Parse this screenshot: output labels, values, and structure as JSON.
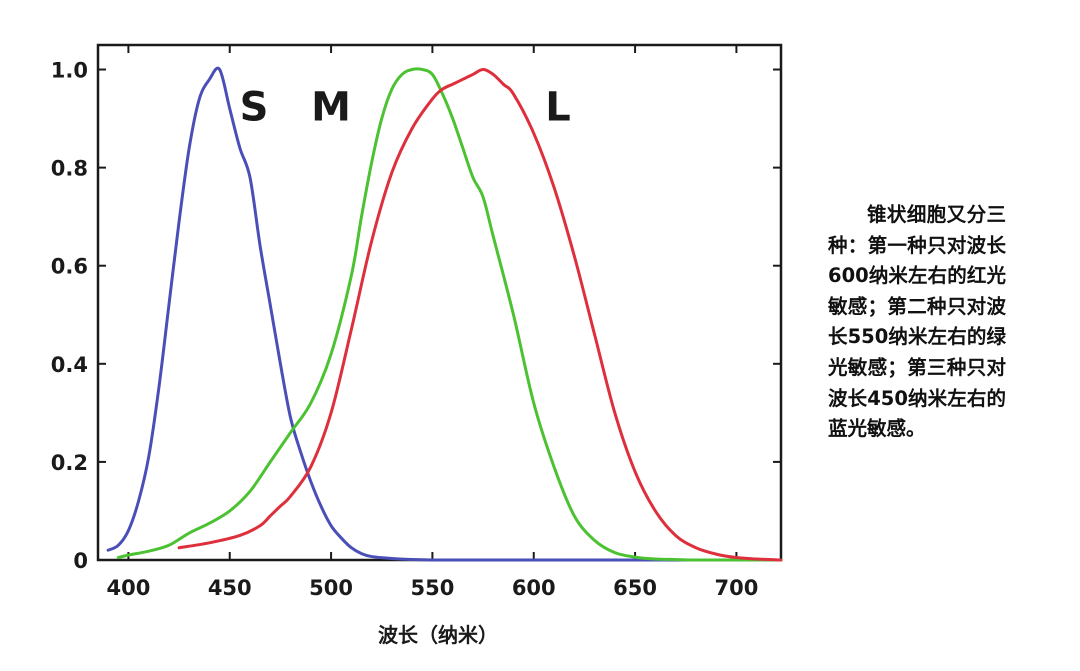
{
  "caption": "锥状细胞又分三种：第一种只对波长600纳米左右的红光敏感；第二种只对波长550纳米左右的绿光敏感；第三种只对波长450纳米左右的蓝光敏感。",
  "chart_data": {
    "type": "line",
    "xlabel": "波长（纳米）",
    "ylabel": "",
    "xlim": [
      385,
      722
    ],
    "ylim": [
      0,
      1.05
    ],
    "xticks": [
      400,
      450,
      500,
      550,
      600,
      650,
      700
    ],
    "yticks": [
      0,
      0.2,
      0.4,
      0.6,
      0.8,
      1.0
    ],
    "xtick_labels": [
      "400",
      "450",
      "500",
      "550",
      "600",
      "650",
      "700"
    ],
    "ytick_labels": [
      "0",
      "0.2",
      "0.4",
      "0.6",
      "0.8",
      "1.0"
    ],
    "grid": false,
    "series": [
      {
        "name": "S",
        "color": "#4a4fb8",
        "x": [
          390,
          395,
          400,
          405,
          410,
          415,
          420,
          425,
          430,
          435,
          440,
          445,
          450,
          455,
          460,
          465,
          470,
          475,
          480,
          485,
          490,
          495,
          500,
          505,
          510,
          515,
          520,
          530,
          540,
          550,
          560,
          580,
          600,
          650,
          700,
          722
        ],
        "y": [
          0.02,
          0.03,
          0.06,
          0.12,
          0.21,
          0.35,
          0.52,
          0.69,
          0.84,
          0.94,
          0.98,
          1.0,
          0.92,
          0.84,
          0.78,
          0.64,
          0.52,
          0.4,
          0.29,
          0.22,
          0.16,
          0.11,
          0.07,
          0.045,
          0.025,
          0.013,
          0.007,
          0.003,
          0.001,
          0.0,
          0.0,
          0.0,
          0.0,
          0.0,
          0.0,
          0.0
        ]
      },
      {
        "name": "M",
        "color": "#4cc232",
        "x": [
          395,
          400,
          410,
          420,
          430,
          440,
          450,
          460,
          470,
          480,
          490,
          500,
          510,
          515,
          520,
          525,
          530,
          535,
          540,
          545,
          550,
          555,
          560,
          565,
          570,
          575,
          580,
          590,
          600,
          610,
          620,
          630,
          640,
          650,
          660,
          670,
          680,
          700,
          722
        ],
        "y": [
          0.005,
          0.01,
          0.018,
          0.03,
          0.055,
          0.075,
          0.1,
          0.14,
          0.2,
          0.26,
          0.32,
          0.42,
          0.58,
          0.7,
          0.81,
          0.9,
          0.96,
          0.99,
          1.0,
          1.0,
          0.99,
          0.95,
          0.9,
          0.84,
          0.78,
          0.74,
          0.66,
          0.5,
          0.32,
          0.19,
          0.09,
          0.04,
          0.015,
          0.006,
          0.002,
          0.001,
          0.0,
          0.0,
          0.0
        ]
      },
      {
        "name": "L",
        "color": "#dd2f3c",
        "x": [
          425,
          440,
          455,
          465,
          470,
          475,
          480,
          490,
          500,
          510,
          520,
          530,
          540,
          550,
          555,
          560,
          565,
          570,
          575,
          580,
          585,
          590,
          600,
          610,
          620,
          630,
          640,
          650,
          660,
          670,
          680,
          690,
          700,
          710,
          722
        ],
        "y": [
          0.025,
          0.035,
          0.05,
          0.07,
          0.09,
          0.11,
          0.13,
          0.19,
          0.3,
          0.47,
          0.65,
          0.79,
          0.88,
          0.94,
          0.96,
          0.97,
          0.98,
          0.99,
          1.0,
          0.99,
          0.97,
          0.95,
          0.87,
          0.76,
          0.62,
          0.46,
          0.3,
          0.18,
          0.1,
          0.05,
          0.025,
          0.012,
          0.005,
          0.002,
          0.0
        ]
      }
    ],
    "annotations": [
      {
        "text": "S",
        "x": 462,
        "y": 0.925
      },
      {
        "text": "M",
        "x": 500,
        "y": 0.925
      },
      {
        "text": "L",
        "x": 612,
        "y": 0.925
      }
    ]
  }
}
